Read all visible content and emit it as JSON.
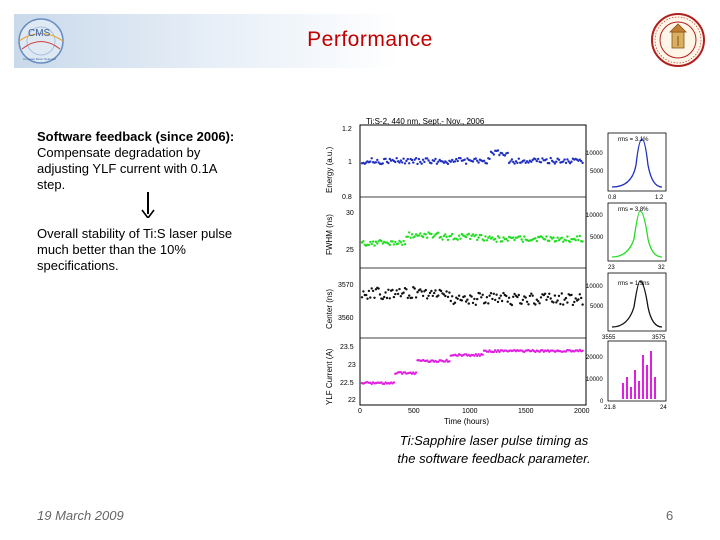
{
  "slide": {
    "title": "Performance",
    "date": "19 March 2009",
    "page_number": "6"
  },
  "text": {
    "b1_heading": "Software feedback (since 2006):",
    "b1_line2": "Compensate degradation by",
    "b1_line3": "adjusting YLF current with 0.1A",
    "b1_line4": "step.",
    "b2_line1": "Overall stability of Ti:S laser pulse",
    "b2_line2": "much better than the 10%",
    "b2_line3": "specifications."
  },
  "caption": {
    "line1": "Ti:Sapphire laser pulse timing as",
    "line2": "the software feedback parameter."
  },
  "logos": {
    "cms": "CMS",
    "cms_caption": "Compact Muon Solenoid"
  },
  "figure": {
    "title": "Ti:S-2, 440 nm, Sept.- Nov., 2006",
    "xlabel": "Time (hours)",
    "xticks": [
      "0",
      "500",
      "1000",
      "1500",
      "2000"
    ],
    "panels": [
      {
        "ylabel": "Energy (a.u.)",
        "yticks": [
          "1.2",
          "1",
          "0.8"
        ],
        "rms": "rms = 3.1%",
        "hist_ticks": [
          "10000",
          "5000"
        ],
        "hist_x": [
          "0.8",
          "1.2"
        ],
        "color": "#1f2fbf"
      },
      {
        "ylabel": "FWHM (ns)",
        "yticks": [
          "30",
          "25"
        ],
        "rms": "rms = 3.8%",
        "hist_ticks": [
          "10000",
          "5000"
        ],
        "hist_x": [
          "23",
          "32"
        ],
        "color": "#22dd22"
      },
      {
        "ylabel": "Center (ns)",
        "yticks": [
          "3570",
          "3560"
        ],
        "rms": "rms = 1.9ns",
        "hist_ticks": [
          "10000",
          "5000"
        ],
        "hist_x": [
          "3555",
          "3575"
        ],
        "color": "#111111"
      },
      {
        "ylabel": "YLF Current (A)",
        "yticks": [
          "23.5",
          "23",
          "22.5",
          "22"
        ],
        "rms": "",
        "hist_ticks": [
          "20000",
          "10000",
          "0"
        ],
        "hist_x": [
          "21.8",
          "24"
        ],
        "color": "#e020e0"
      }
    ]
  }
}
